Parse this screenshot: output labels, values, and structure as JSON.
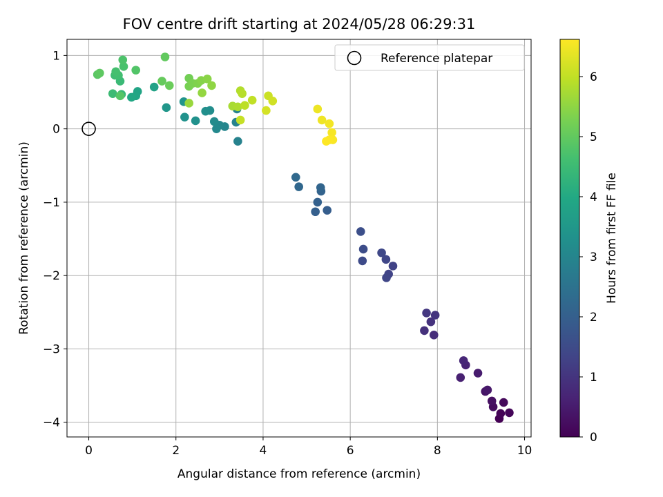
{
  "chart_data": {
    "type": "scatter",
    "title": "FOV centre drift starting at 2024/05/28 06:29:31",
    "xlabel": "Angular distance from reference (arcmin)",
    "ylabel": "Rotation from reference (arcmin)",
    "xlim": [
      -0.5,
      10.15
    ],
    "ylim": [
      -4.2,
      1.22
    ],
    "xticks": [
      0,
      2,
      4,
      6,
      8,
      10
    ],
    "yticks": [
      -4,
      -3,
      -2,
      -1,
      0,
      1
    ],
    "grid": true,
    "colormap": "viridis",
    "colorbar": {
      "label": "Hours from first FF file",
      "range": [
        0,
        6.62
      ],
      "ticks": [
        0,
        1,
        2,
        3,
        4,
        5,
        6
      ]
    },
    "legend": {
      "placement": "top-right",
      "entries": [
        "Reference platepar"
      ]
    },
    "reference_point": {
      "x": 0,
      "y": 0,
      "style": "open-circle"
    },
    "series": [
      {
        "fields": [
          "x",
          "y",
          "hours"
        ],
        "points": [
          [
            9.42,
            -3.95
          ],
          [
            9.45,
            -3.88
          ],
          [
            9.65,
            -3.87
          ],
          [
            9.52,
            -3.73
          ],
          [
            9.28,
            -3.79
          ],
          [
            9.25,
            -3.71
          ],
          [
            9.1,
            -3.58
          ],
          [
            9.15,
            -3.56
          ],
          [
            8.93,
            -3.33
          ],
          [
            8.53,
            -3.39
          ],
          [
            8.65,
            -3.22
          ],
          [
            8.6,
            -3.16
          ],
          [
            7.92,
            -2.81
          ],
          [
            7.7,
            -2.75
          ],
          [
            7.85,
            -2.63
          ],
          [
            7.95,
            -2.54
          ],
          [
            7.75,
            -2.51
          ],
          [
            6.98,
            -1.87
          ],
          [
            6.88,
            -1.98
          ],
          [
            6.83,
            -2.03
          ],
          [
            6.82,
            -1.78
          ],
          [
            6.72,
            -1.69
          ],
          [
            6.28,
            -1.8
          ],
          [
            6.3,
            -1.64
          ],
          [
            6.24,
            -1.4
          ],
          [
            5.47,
            -1.11
          ],
          [
            5.2,
            -1.13
          ],
          [
            5.25,
            -1.0
          ],
          [
            5.33,
            -0.85
          ],
          [
            5.32,
            -0.8
          ],
          [
            4.82,
            -0.79
          ],
          [
            4.75,
            -0.66
          ],
          [
            3.42,
            -0.17
          ],
          [
            3.38,
            0.09
          ],
          [
            3.4,
            0.27
          ],
          [
            3.12,
            0.03
          ],
          [
            3.0,
            0.05
          ],
          [
            2.93,
            0.0
          ],
          [
            2.88,
            0.1
          ],
          [
            2.78,
            0.25
          ],
          [
            2.68,
            0.24
          ],
          [
            2.45,
            0.11
          ],
          [
            2.2,
            0.16
          ],
          [
            2.18,
            0.37
          ],
          [
            1.78,
            0.29
          ],
          [
            1.5,
            0.57
          ],
          [
            1.12,
            0.51
          ],
          [
            1.08,
            0.45
          ],
          [
            0.98,
            0.43
          ],
          [
            0.75,
            0.47
          ],
          [
            0.72,
            0.65
          ],
          [
            0.55,
            0.48
          ],
          [
            0.6,
            0.73
          ],
          [
            0.68,
            0.73
          ],
          [
            0.62,
            0.78
          ],
          [
            0.8,
            0.85
          ],
          [
            0.78,
            0.94
          ],
          [
            1.08,
            0.8
          ],
          [
            0.72,
            0.45
          ],
          [
            0.2,
            0.74
          ],
          [
            0.25,
            0.76
          ],
          [
            1.75,
            0.98
          ],
          [
            1.68,
            0.65
          ],
          [
            1.85,
            0.59
          ],
          [
            2.3,
            0.69
          ],
          [
            2.3,
            0.58
          ],
          [
            2.38,
            0.62
          ],
          [
            2.5,
            0.62
          ],
          [
            2.58,
            0.66
          ],
          [
            2.72,
            0.68
          ],
          [
            2.82,
            0.59
          ],
          [
            2.6,
            0.49
          ],
          [
            2.3,
            0.35
          ],
          [
            3.3,
            0.31
          ],
          [
            3.42,
            0.3
          ],
          [
            3.48,
            0.52
          ],
          [
            3.52,
            0.48
          ],
          [
            3.58,
            0.32
          ],
          [
            3.75,
            0.39
          ],
          [
            3.48,
            0.12
          ],
          [
            4.12,
            0.45
          ],
          [
            4.22,
            0.38
          ],
          [
            4.07,
            0.25
          ],
          [
            5.25,
            0.27
          ],
          [
            5.35,
            0.12
          ],
          [
            5.52,
            0.07
          ],
          [
            5.58,
            -0.05
          ],
          [
            5.6,
            -0.15
          ],
          [
            5.52,
            -0.15
          ],
          [
            5.45,
            -0.17
          ]
        ],
        "hours": [
          0.0,
          0.05,
          0.1,
          0.15,
          0.2,
          0.28,
          0.36,
          0.44,
          0.52,
          0.6,
          0.66,
          0.72,
          0.85,
          0.9,
          0.95,
          1.0,
          1.05,
          1.3,
          1.33,
          1.37,
          1.4,
          1.43,
          1.5,
          1.55,
          1.6,
          1.95,
          2.0,
          2.05,
          2.1,
          2.15,
          2.2,
          2.25,
          2.9,
          2.93,
          2.96,
          3.0,
          3.05,
          3.1,
          3.15,
          3.2,
          3.25,
          3.3,
          3.35,
          3.4,
          3.45,
          3.8,
          3.85,
          3.9,
          3.95,
          4.4,
          4.45,
          4.5,
          4.55,
          4.6,
          4.65,
          4.7,
          4.75,
          4.8,
          4.85,
          4.9,
          4.95,
          5.0,
          5.05,
          5.1,
          5.2,
          5.25,
          5.3,
          5.35,
          5.4,
          5.45,
          5.5,
          5.55,
          5.6,
          5.75,
          5.8,
          5.85,
          5.9,
          5.95,
          6.0,
          6.05,
          6.1,
          6.15,
          6.2,
          6.45,
          6.48,
          6.52,
          6.55,
          6.58,
          6.6,
          6.62
        ]
      }
    ]
  }
}
